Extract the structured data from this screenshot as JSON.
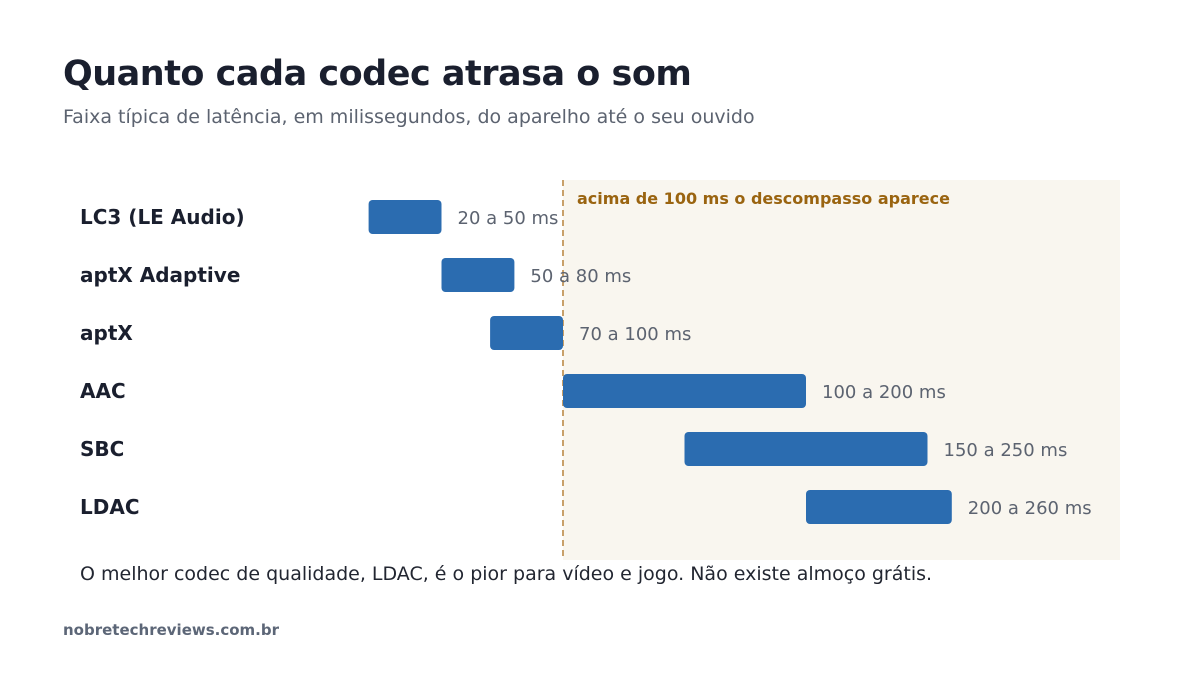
{
  "title": "Quanto cada codec atrasa o som",
  "subtitle": "Faixa típica de latência, em milissegundos, do aparelho até o seu ouvido",
  "caption": "O melhor codec de qualidade, LDAC, é o pior para vídeo e jogo. Não existe almoço grátis.",
  "footer": "nobretechreviews.com.br",
  "colors": {
    "bar": "#2b6cb0",
    "zone_fill": "#f9f6ef",
    "zone_line": "#c8a06a",
    "zone_text": "#9a6410"
  },
  "chart_data": {
    "type": "bar",
    "orientation": "horizontal-range",
    "categories": [
      "LC3 (LE Audio)",
      "aptX Adaptive",
      "aptX",
      "AAC",
      "SBC",
      "LDAC"
    ],
    "ranges": [
      [
        20,
        50
      ],
      [
        50,
        80
      ],
      [
        70,
        100
      ],
      [
        100,
        200
      ],
      [
        150,
        250
      ],
      [
        200,
        260
      ]
    ],
    "value_labels": [
      "20 a 50 ms",
      "50 a 80 ms",
      "70 a 100 ms",
      "100 a 200 ms",
      "150 a 250 ms",
      "200 a 260 ms"
    ],
    "threshold": {
      "value": 100,
      "label": "acima de 100 ms o descompasso aparece"
    },
    "grid": false,
    "legend": "none"
  }
}
